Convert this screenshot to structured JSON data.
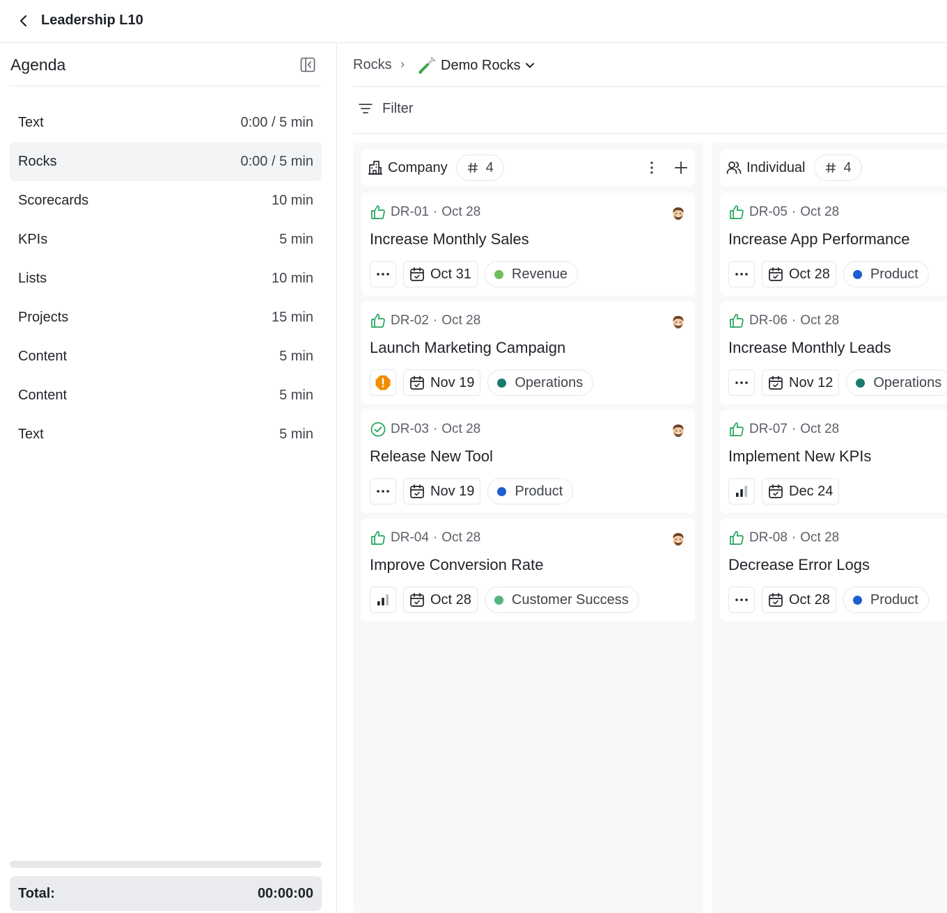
{
  "header": {
    "title": "Leadership L10"
  },
  "sidebar": {
    "title": "Agenda",
    "items": [
      {
        "label": "Text",
        "time": "0:00 / 5 min"
      },
      {
        "label": "Rocks",
        "time": "0:00 / 5 min",
        "active": true
      },
      {
        "label": "Scorecards",
        "time": "10 min"
      },
      {
        "label": "KPIs",
        "time": "5 min"
      },
      {
        "label": "Lists",
        "time": "10 min"
      },
      {
        "label": "Projects",
        "time": "15 min"
      },
      {
        "label": "Content",
        "time": "5 min"
      },
      {
        "label": "Content",
        "time": "5 min"
      },
      {
        "label": "Text",
        "time": "5 min"
      }
    ],
    "progress": 0,
    "total_label": "Total:",
    "total_value": "00:00:00"
  },
  "breadcrumb": {
    "root": "Rocks",
    "separator": "›",
    "current": "Demo Rocks",
    "current_icon": "test-tube-icon"
  },
  "filter": {
    "label": "Filter"
  },
  "colors": {
    "green": "#22a55a",
    "orange": "#f08c00",
    "teal": "#1a7a6e",
    "blue": "#1e5fd0",
    "light_green": "#6fbf5a",
    "mid_green": "#55b47a"
  },
  "columns": [
    {
      "title": "Company",
      "icon": "building-icon",
      "count_symbol": "#",
      "count": "4",
      "cards": [
        {
          "id": "DR-01",
          "date": "Oct 28",
          "status_icon": "thumbs-up-icon",
          "title": "Increase Monthly Sales",
          "action": "more",
          "due": "Oct 31",
          "tag": "Revenue",
          "tag_color": "#6fbf5a"
        },
        {
          "id": "DR-02",
          "date": "Oct 28",
          "status_icon": "thumbs-up-icon",
          "title": "Launch Marketing Campaign",
          "action": "warning",
          "due": "Nov 19",
          "tag": "Operations",
          "tag_color": "#1a7a6e"
        },
        {
          "id": "DR-03",
          "date": "Oct 28",
          "status_icon": "check-circle-icon",
          "title": "Release New Tool",
          "action": "more",
          "due": "Nov 19",
          "tag": "Product",
          "tag_color": "#1e5fd0"
        },
        {
          "id": "DR-04",
          "date": "Oct 28",
          "status_icon": "thumbs-up-icon",
          "title": "Improve Conversion Rate",
          "action": "chart",
          "due": "Oct 28",
          "tag": "Customer Success",
          "tag_color": "#55b47a"
        }
      ]
    },
    {
      "title": "Individual",
      "icon": "users-icon",
      "count_symbol": "#",
      "count": "4",
      "cards": [
        {
          "id": "DR-05",
          "date": "Oct 28",
          "status_icon": "thumbs-up-icon",
          "title": "Increase App Performance",
          "action": "more",
          "due": "Oct 28",
          "tag": "Product",
          "tag_color": "#1e5fd0"
        },
        {
          "id": "DR-06",
          "date": "Oct 28",
          "status_icon": "thumbs-up-icon",
          "title": "Increase Monthly Leads",
          "action": "more",
          "due": "Nov 12",
          "tag": "Operations",
          "tag_color": "#1a7a6e"
        },
        {
          "id": "DR-07",
          "date": "Oct 28",
          "status_icon": "thumbs-up-icon",
          "title": "Implement New KPIs",
          "action": "chart",
          "due": "Dec 24",
          "tag": "",
          "tag_color": ""
        },
        {
          "id": "DR-08",
          "date": "Oct 28",
          "status_icon": "thumbs-up-icon",
          "title": "Decrease Error Logs",
          "action": "more",
          "due": "Oct 28",
          "tag": "Product",
          "tag_color": "#1e5fd0"
        }
      ]
    }
  ]
}
